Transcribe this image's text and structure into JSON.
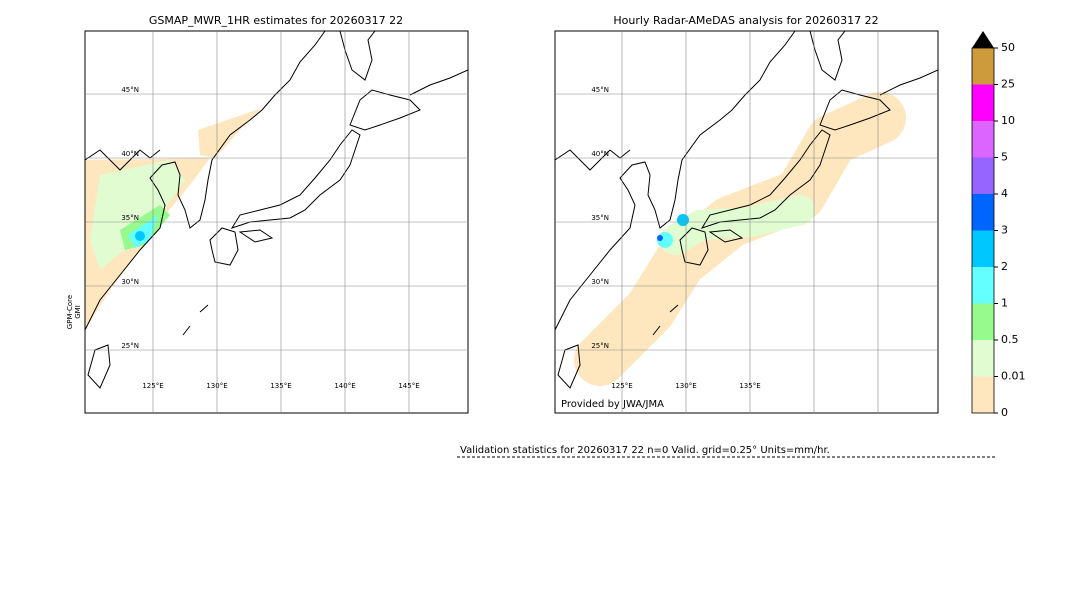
{
  "panels": [
    {
      "title": "GSMAP_MWR_1HR estimates for 20260317 22",
      "lat_labels": [
        "45°N",
        "40°N",
        "35°N",
        "30°N",
        "25°N"
      ],
      "lon_labels": [
        "125°E",
        "130°E",
        "135°E",
        "140°E",
        "145°E"
      ],
      "side_label": [
        "GPM-Core",
        "GMI"
      ]
    },
    {
      "title": "Hourly Radar-AMeDAS analysis for 20260317 22",
      "lat_labels": [
        "45°N",
        "40°N",
        "35°N",
        "30°N",
        "25°N"
      ],
      "lon_labels": [
        "125°E",
        "130°E",
        "135°E"
      ],
      "credit": "Provided by JWA/JMA"
    }
  ],
  "colorbar": {
    "ticks": [
      "0",
      "0.01",
      "0.5",
      "1",
      "2",
      "3",
      "4",
      "5",
      "10",
      "25",
      "50"
    ],
    "colors": [
      "#fee7be",
      "#e0fcd0",
      "#96fa8c",
      "#64ffff",
      "#00c8ff",
      "#0064ff",
      "#9664ff",
      "#dc64ff",
      "#ff00ff",
      "#cd9b3c"
    ],
    "extend_color": "#000000"
  },
  "validation": "Validation statistics for 20260317 22  n=0 Valid. grid=0.25° Units=mm/hr."
}
